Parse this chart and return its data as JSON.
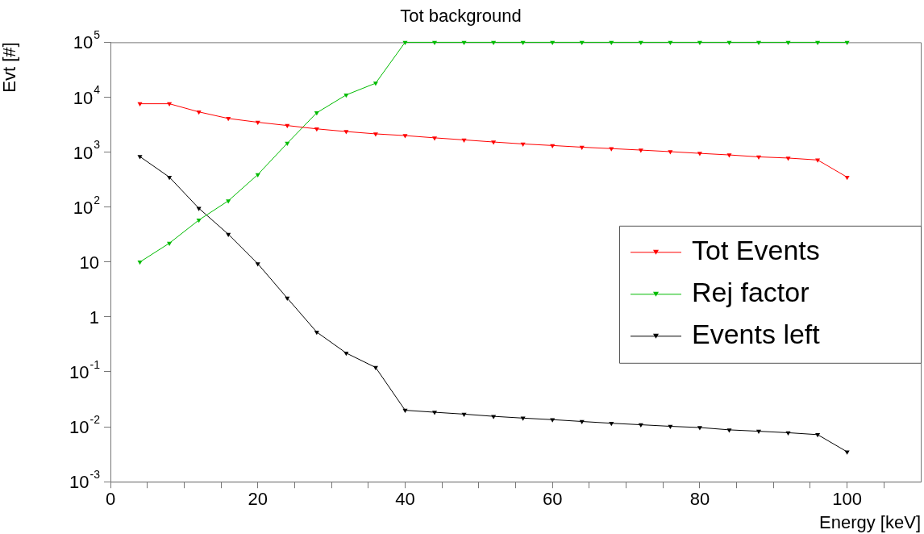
{
  "chart_data": {
    "type": "line",
    "title": "Tot background",
    "xlabel": "Energy [keV]",
    "ylabel": "Evt [#]",
    "x": [
      4,
      8,
      12,
      16,
      20,
      24,
      28,
      32,
      36,
      40,
      44,
      48,
      52,
      56,
      60,
      64,
      68,
      72,
      76,
      80,
      84,
      88,
      92,
      96,
      100
    ],
    "series": [
      {
        "name": "Tot Events",
        "color": "#ff0000",
        "values": [
          7600,
          7600,
          5400,
          4100,
          3500,
          3050,
          2650,
          2370,
          2150,
          2000,
          1820,
          1670,
          1530,
          1410,
          1320,
          1230,
          1160,
          1090,
          1020,
          950,
          890,
          820,
          780,
          720,
          350
        ]
      },
      {
        "name": "Rej factor",
        "color": "#00bb00",
        "values": [
          10,
          22,
          58,
          130,
          390,
          1450,
          5200,
          11000,
          18000,
          100000,
          100000,
          100000,
          100000,
          100000,
          100000,
          100000,
          100000,
          100000,
          100000,
          100000,
          100000,
          100000,
          100000,
          100000,
          100000
        ]
      },
      {
        "name": "Events left",
        "color": "#000000",
        "values": [
          830,
          350,
          95,
          32,
          9.3,
          2.2,
          0.53,
          0.22,
          0.12,
          0.02,
          0.0184,
          0.017,
          0.0155,
          0.0144,
          0.0135,
          0.0125,
          0.0116,
          0.0109,
          0.0102,
          0.0097,
          0.0088,
          0.0083,
          0.0078,
          0.0072,
          0.0035
        ]
      }
    ],
    "log": "y",
    "marker": "triangle",
    "line_style": "solid",
    "legend": "right",
    "grid": false,
    "xlim": [
      0,
      110
    ],
    "xticks": [
      0,
      {
        "value": 5,
        "label": null
      },
      {
        "value": 10,
        "label": null
      },
      {
        "value": 15,
        "label": null
      },
      20,
      {
        "value": 25,
        "label": null
      },
      {
        "value": 30,
        "label": null
      },
      {
        "value": 35,
        "label": null
      },
      40,
      {
        "value": 45,
        "label": null
      },
      {
        "value": 50,
        "label": null
      },
      {
        "value": 55,
        "label": null
      },
      60,
      {
        "value": 65,
        "label": null
      },
      {
        "value": 70,
        "label": null
      },
      {
        "value": 75,
        "label": null
      },
      80,
      {
        "value": 85,
        "label": null
      },
      {
        "value": 90,
        "label": null
      },
      {
        "value": 95,
        "label": null
      },
      100,
      {
        "value": 105,
        "label": null
      }
    ],
    "ylim": [
      0.001,
      100000
    ],
    "yticks": [
      {
        "value": 0.001,
        "label": "10$^{-3}$"
      },
      {
        "value": 0.01,
        "label": "10$^{-2}$"
      },
      {
        "value": 0.1,
        "label": "10$^{-1}$"
      },
      1,
      10,
      {
        "value": 100,
        "label": "10$^{2}$"
      },
      {
        "value": 1000,
        "label": "10$^{3}$"
      },
      {
        "value": 10000,
        "label": "10$^{4}$"
      },
      {
        "value": 100000,
        "label": "10$^{5}$"
      }
    ]
  }
}
